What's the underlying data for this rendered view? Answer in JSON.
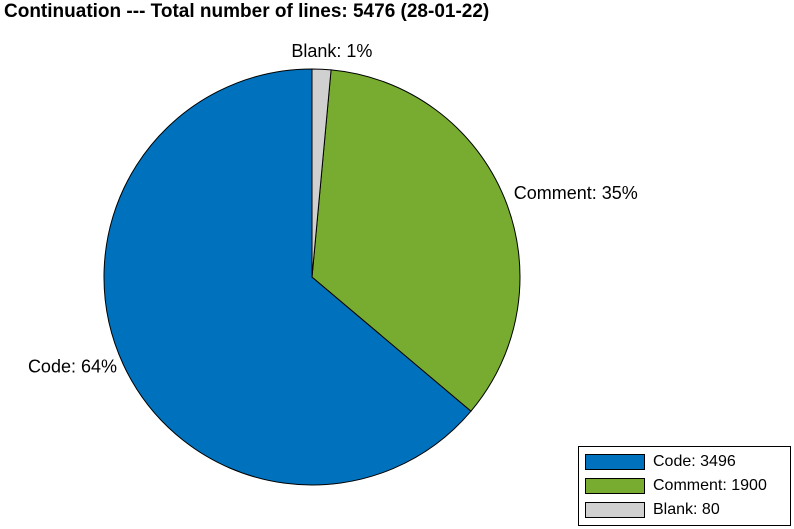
{
  "chart_data": {
    "type": "pie",
    "title": "Continuation --- Total number of lines: 5476 (28-01-22)",
    "slices": [
      {
        "name": "Code",
        "value": 3496,
        "percent_label": "Code: 64%",
        "legend_label": "Code: 3496",
        "color": "#0072BD"
      },
      {
        "name": "Comment",
        "value": 1900,
        "percent_label": "Comment: 35%",
        "legend_label": "Comment: 1900",
        "color": "#77AC30"
      },
      {
        "name": "Blank",
        "value": 80,
        "percent_label": "Blank: 1%",
        "legend_label": "Blank: 80",
        "color": "#D0D0D0"
      }
    ],
    "start": "top",
    "direction": "counterclockwise",
    "legend_position": "bottom-right"
  }
}
